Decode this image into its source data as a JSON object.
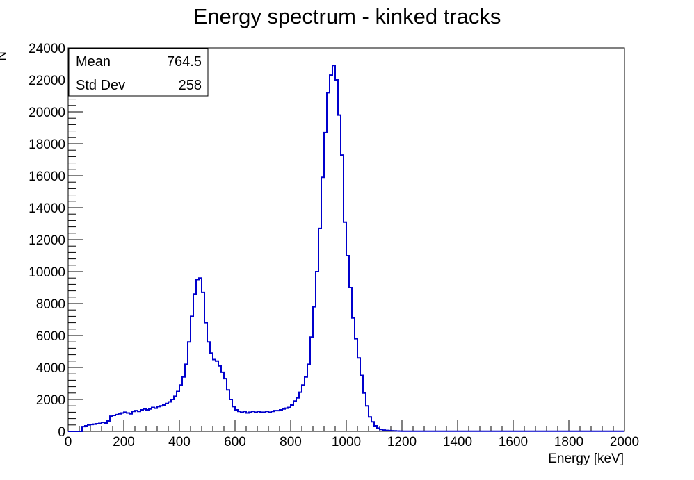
{
  "chart_data": {
    "type": "bar",
    "histogram": true,
    "title": "Energy spectrum - kinked tracks",
    "xlabel": "Energy [keV]",
    "ylabel": "N",
    "xlim": [
      0,
      2000
    ],
    "ylim": [
      0,
      24000
    ],
    "bin_width": 10,
    "x_ticks": [
      0,
      200,
      400,
      600,
      800,
      1000,
      1200,
      1400,
      1600,
      1800,
      2000
    ],
    "x_tick_labels": [
      "0",
      "200",
      "400",
      "600",
      "800",
      "1000",
      "1200",
      "1400",
      "1600",
      "1800",
      "2000"
    ],
    "y_ticks": [
      0,
      2000,
      4000,
      6000,
      8000,
      10000,
      12000,
      14000,
      16000,
      18000,
      20000,
      22000,
      24000
    ],
    "y_tick_labels": [
      "0",
      "2000",
      "4000",
      "6000",
      "8000",
      "10000",
      "12000",
      "14000",
      "16000",
      "18000",
      "20000",
      "22000",
      "24000"
    ],
    "grid": false,
    "line_color": "#0000cc",
    "series": [
      {
        "x": [
          50,
          60,
          70,
          80,
          90,
          100,
          110,
          120,
          130,
          140,
          150,
          160,
          170,
          180,
          190,
          200,
          210,
          220,
          230,
          240,
          250,
          260,
          270,
          280,
          290,
          300,
          310,
          320,
          330,
          340,
          350,
          360,
          370,
          380,
          390,
          400,
          410,
          420,
          430,
          440,
          450,
          460,
          470,
          480,
          490,
          500,
          510,
          520,
          530,
          540,
          550,
          560,
          570,
          580,
          590,
          600,
          610,
          620,
          630,
          640,
          650,
          660,
          670,
          680,
          690,
          700,
          710,
          720,
          730,
          740,
          750,
          760,
          770,
          780,
          790,
          800,
          810,
          820,
          830,
          840,
          850,
          860,
          870,
          880,
          890,
          900,
          910,
          920,
          930,
          940,
          950,
          960,
          970,
          980,
          990,
          1000,
          1010,
          1020,
          1030,
          1040,
          1050,
          1060,
          1070,
          1080,
          1090,
          1100,
          1110,
          1120,
          1130,
          1140,
          1150,
          1160,
          1170,
          1180,
          1190
        ],
        "values": [
          300,
          350,
          400,
          430,
          450,
          480,
          500,
          560,
          520,
          650,
          950,
          1000,
          1050,
          1100,
          1150,
          1200,
          1150,
          1100,
          1250,
          1300,
          1250,
          1350,
          1400,
          1350,
          1400,
          1500,
          1450,
          1550,
          1600,
          1650,
          1750,
          1850,
          2000,
          2200,
          2500,
          2900,
          3400,
          4200,
          5600,
          7200,
          8600,
          9500,
          9600,
          8700,
          6800,
          5600,
          4900,
          4500,
          4400,
          4100,
          3700,
          3300,
          2600,
          2000,
          1550,
          1350,
          1250,
          1200,
          1250,
          1150,
          1200,
          1250,
          1200,
          1250,
          1200,
          1200,
          1250,
          1200,
          1250,
          1300,
          1300,
          1350,
          1400,
          1450,
          1500,
          1650,
          1900,
          2100,
          2450,
          2900,
          3400,
          4200,
          5900,
          7800,
          10000,
          12700,
          15900,
          18700,
          21200,
          22300,
          22900,
          22000,
          19800,
          17300,
          13100,
          11000,
          9000,
          7100,
          5800,
          4600,
          3500,
          2400,
          1600,
          900,
          600,
          350,
          200,
          120,
          80,
          60,
          50,
          40,
          30,
          20,
          15
        ],
        "tail_value": 10
      }
    ],
    "stats_box": {
      "position": "top-left",
      "rows": [
        {
          "label": "Mean",
          "value": "764.5"
        },
        {
          "label": "Std Dev",
          "value": "258"
        }
      ]
    }
  }
}
